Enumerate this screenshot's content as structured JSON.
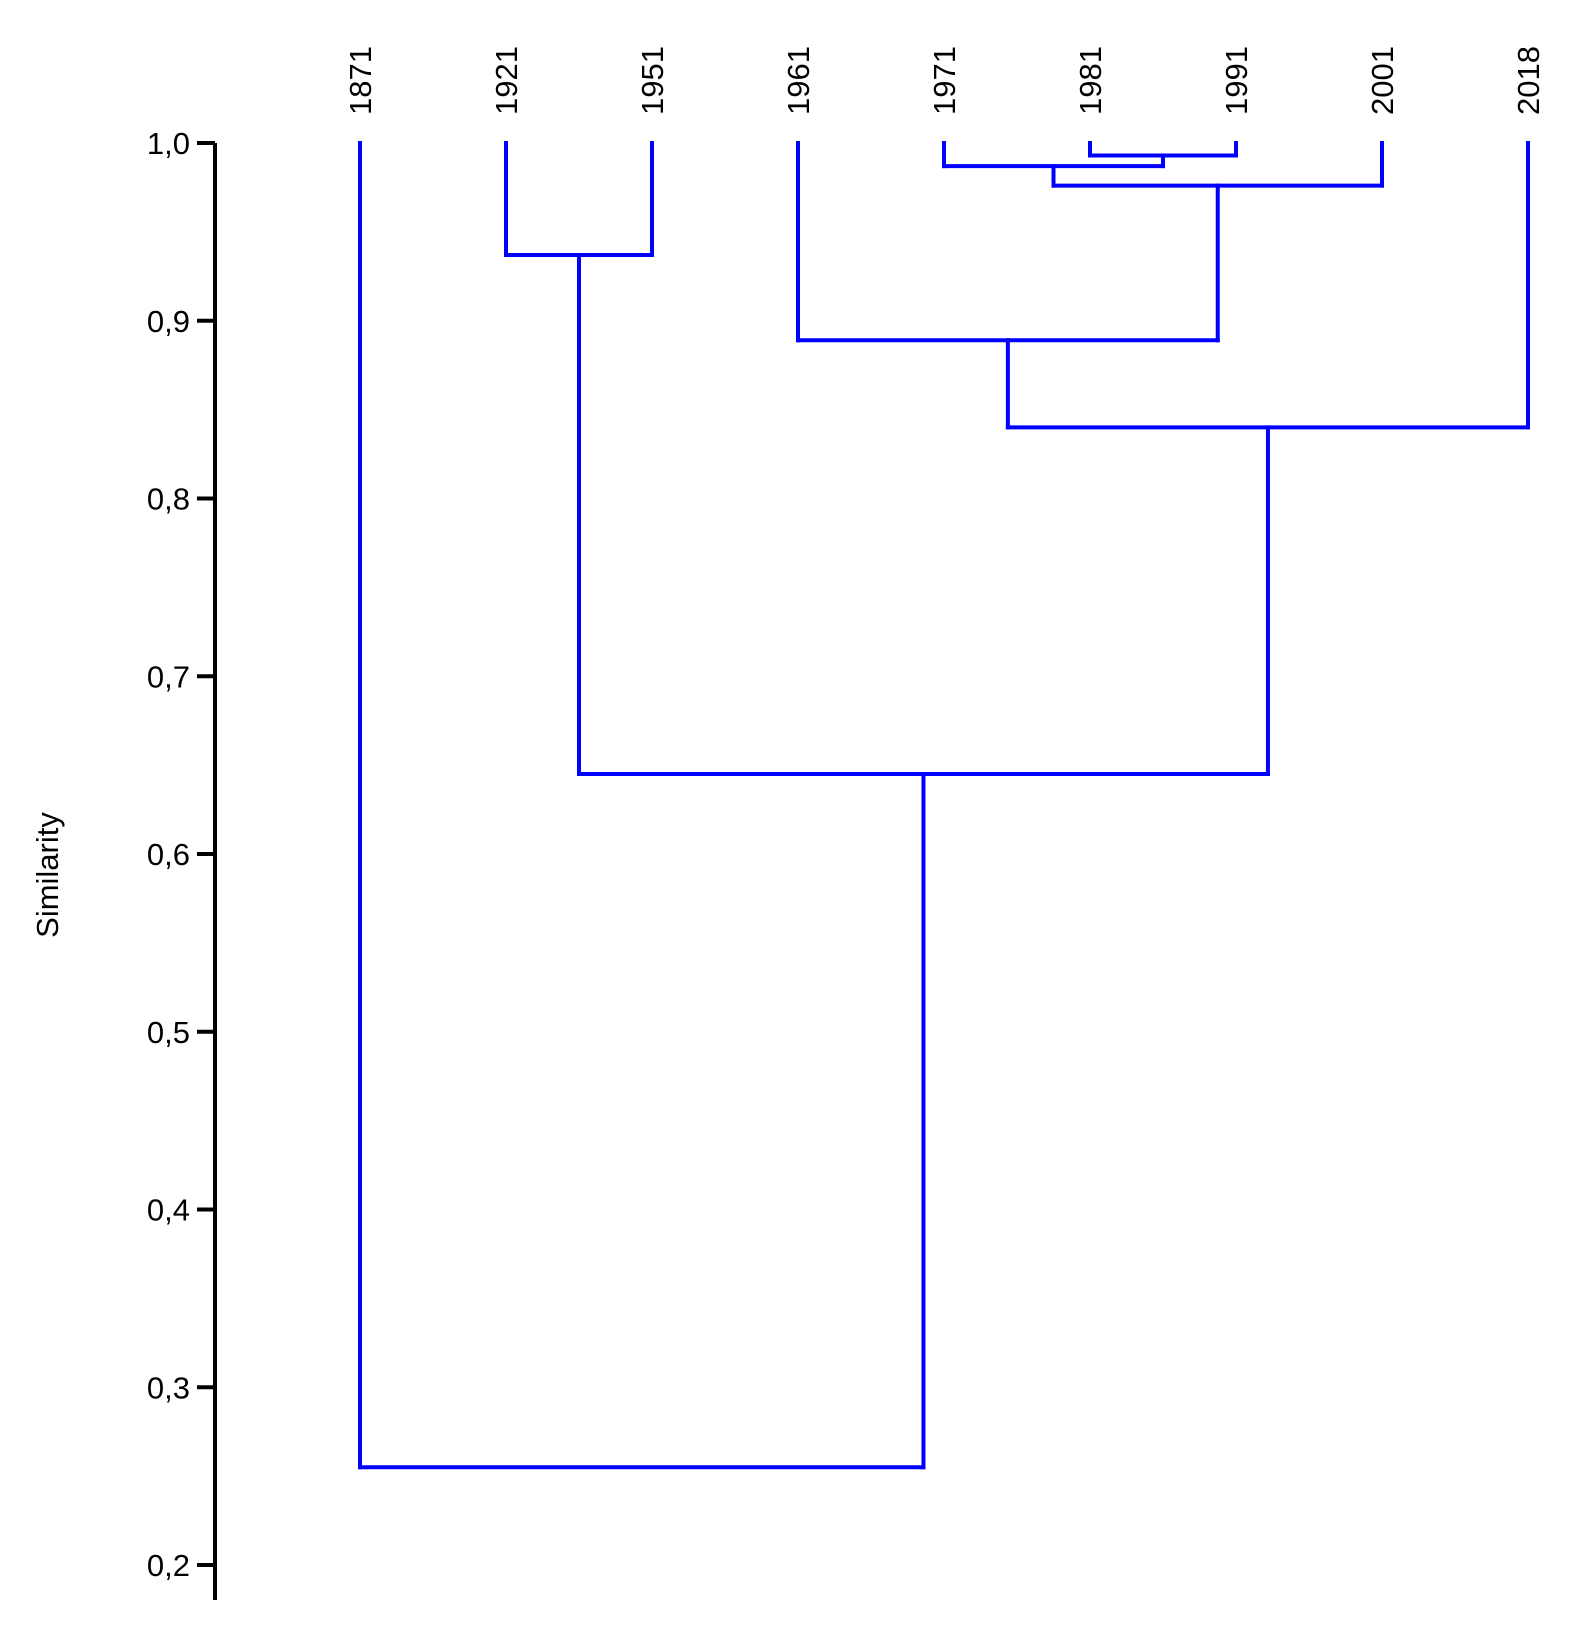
{
  "chart_data": {
    "type": "dendrogram",
    "ylabel": "Similarity",
    "ylim": [
      0.2,
      1.0
    ],
    "yticks": [
      "1,0",
      "0,9",
      "0,8",
      "0,7",
      "0,6",
      "0,5",
      "0,4",
      "0,3",
      "0,2"
    ],
    "ytick_values": [
      1.0,
      0.9,
      0.8,
      0.7,
      0.6,
      0.5,
      0.4,
      0.3,
      0.2
    ],
    "leaves": [
      "1871",
      "1921",
      "1951",
      "1961",
      "1971",
      "1981",
      "1991",
      "2001",
      "2018"
    ],
    "merges": [
      {
        "left": "1981",
        "right": "1991",
        "similarity": 0.993
      },
      {
        "left": "1971",
        "right": "1981+1991",
        "similarity": 0.987
      },
      {
        "left": "1971+1981+1991",
        "right": "2001",
        "similarity": 0.976
      },
      {
        "left": "1921",
        "right": "1951",
        "similarity": 0.937
      },
      {
        "left": "1961",
        "right": "1971+1981+1991+2001",
        "similarity": 0.889
      },
      {
        "left": "1961+1971+1981+1991+2001",
        "right": "2018",
        "similarity": 0.84
      },
      {
        "left": "1921+1951",
        "right": "1961+1971+1981+1991+2001+2018",
        "similarity": 0.645
      },
      {
        "left": "1871",
        "right": "1921+1951+1961+1971+1981+1991+2001+2018",
        "similarity": 0.255
      }
    ],
    "line_color": "#0000ff",
    "axis_color": "#000000"
  }
}
